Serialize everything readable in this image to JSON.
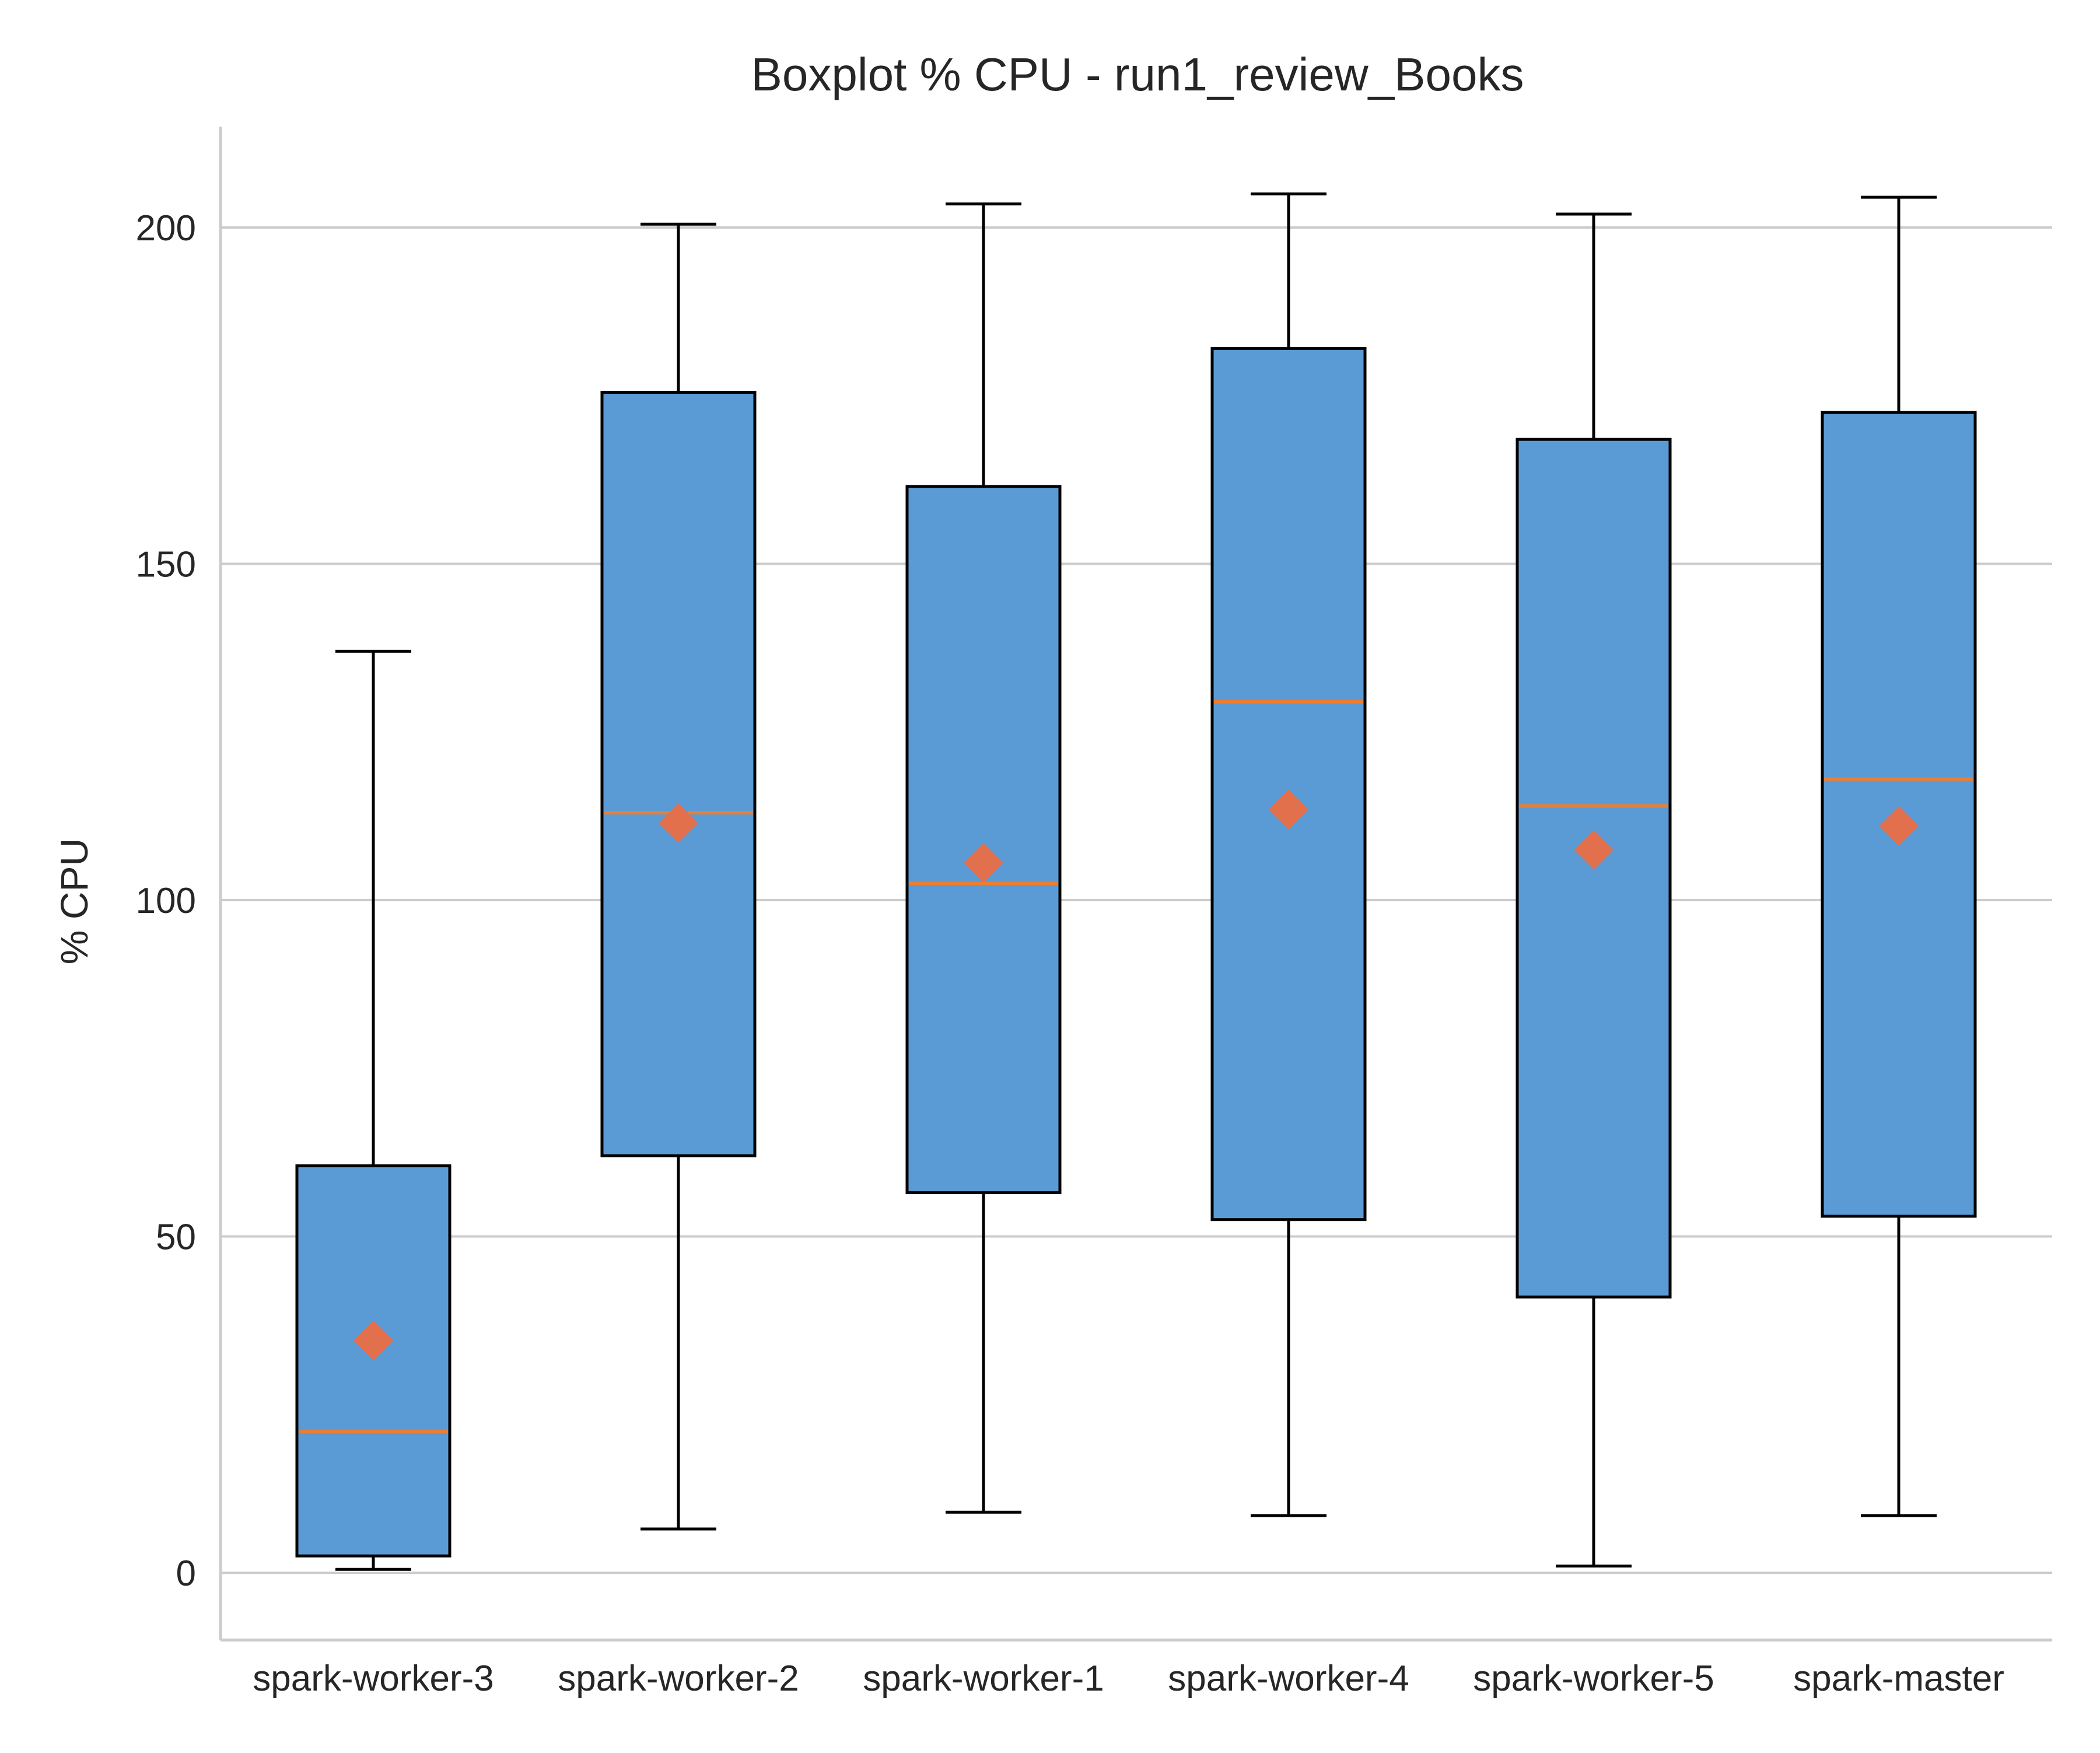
{
  "chart_data": {
    "type": "boxplot",
    "title": "Boxplot % CPU - run1_review_Books",
    "xlabel": "",
    "ylabel": "% CPU",
    "ylim": [
      -10,
      215
    ],
    "yticks": [
      0,
      50,
      100,
      150,
      200
    ],
    "grid": "horizontal",
    "colors": {
      "box_fill": "#5b9bd5",
      "box_edge": "#000000",
      "median": "#ed7d31",
      "mean_marker": "#e3704d",
      "grid": "#cccccc",
      "axis": "#cccccc"
    },
    "categories": [
      "spark-worker-3",
      "spark-worker-2",
      "spark-worker-1",
      "spark-worker-4",
      "spark-worker-5",
      "spark-master"
    ],
    "boxes": [
      {
        "whisker_low": 0.5,
        "q1": 2.5,
        "median": 21,
        "q3": 60.5,
        "whisker_high": 137,
        "mean": 34.5
      },
      {
        "whisker_low": 6.5,
        "q1": 62,
        "median": 113,
        "q3": 175.5,
        "whisker_high": 200.5,
        "mean": 111.5
      },
      {
        "whisker_low": 9,
        "q1": 56.5,
        "median": 102.5,
        "q3": 161.5,
        "whisker_high": 203.5,
        "mean": 105.5
      },
      {
        "whisker_low": 8.5,
        "q1": 52.5,
        "median": 129.5,
        "q3": 182,
        "whisker_high": 205,
        "mean": 113.5
      },
      {
        "whisker_low": 1,
        "q1": 41,
        "median": 114,
        "q3": 168.5,
        "whisker_high": 202,
        "mean": 107.5
      },
      {
        "whisker_low": 8.5,
        "q1": 53,
        "median": 118,
        "q3": 172.5,
        "whisker_high": 204.5,
        "mean": 111
      }
    ]
  }
}
